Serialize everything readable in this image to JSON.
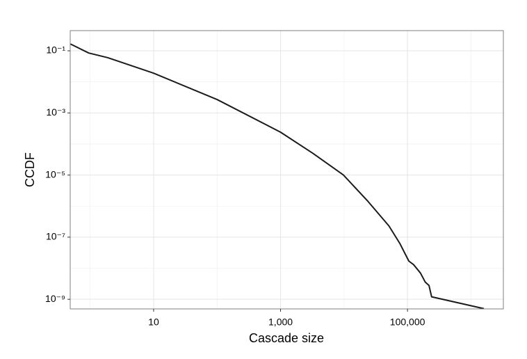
{
  "chart_data": {
    "type": "line",
    "x_label": "Cascade size",
    "y_label": "CCDF",
    "xscale": "log",
    "yscale": "log",
    "grid": true,
    "x": [
      0.49,
      0.95,
      1.9,
      10,
      100,
      1000,
      3240,
      9800,
      24000,
      51000,
      76000,
      105000,
      125000,
      160000,
      190000,
      218000,
      240000,
      1600000
    ],
    "series": [
      {
        "name": null,
        "color": "#1a1a1a",
        "values": [
          0.166,
          0.085,
          0.06,
          0.019,
          0.0027,
          0.00024,
          5e-05,
          1e-05,
          1.4e-06,
          2.3e-07,
          6.2e-08,
          1.7e-08,
          1.3e-08,
          7e-09,
          3.6e-09,
          2.8e-09,
          1.2e-09,
          5e-10
        ]
      }
    ],
    "xlim": [
      0.485,
      3240000
    ],
    "ylim": [
      4.9e-10,
      0.447
    ],
    "xticks": [
      {
        "value": 10,
        "label": "10"
      },
      {
        "value": 1000,
        "label": "1,000"
      },
      {
        "value": 100000,
        "label": "100,000"
      }
    ],
    "yticks": [
      {
        "value": 0.1,
        "label": "10⁻¹"
      },
      {
        "value": 0.001,
        "label": "10⁻³"
      },
      {
        "value": 1e-05,
        "label": "10⁻⁵"
      },
      {
        "value": 1e-07,
        "label": "10⁻⁷"
      },
      {
        "value": 1e-09,
        "label": "10⁻⁹"
      }
    ],
    "xminor": [
      1,
      100,
      10000,
      1000000
    ],
    "yminor": [
      0.01,
      0.0001,
      1e-06,
      1e-08
    ]
  }
}
